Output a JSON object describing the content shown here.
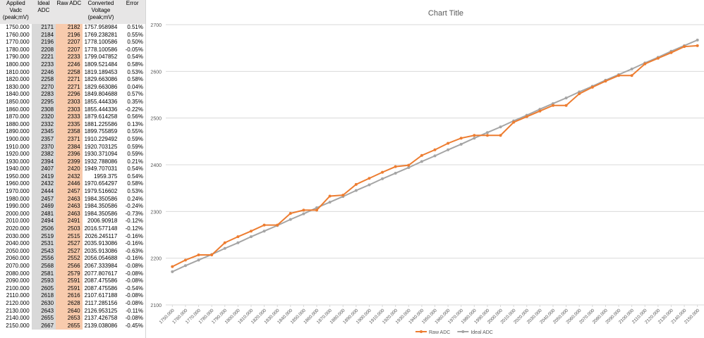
{
  "table": {
    "header": [
      "Applied Vadc (peak;mV)",
      "Ideal ADC",
      "Raw ADC",
      "Converted Voltage (peak;mV)",
      "Error"
    ],
    "rows": [
      [
        "1750.000",
        "2171",
        "2182",
        "1757.958984",
        "0.51%"
      ],
      [
        "1760.000",
        "2184",
        "2196",
        "1769.238281",
        "0.55%"
      ],
      [
        "1770.000",
        "2196",
        "2207",
        "1778.100586",
        "0.50%"
      ],
      [
        "1780.000",
        "2208",
        "2207",
        "1778.100586",
        "-0.05%"
      ],
      [
        "1790.000",
        "2221",
        "2233",
        "1799.047852",
        "0.54%"
      ],
      [
        "1800.000",
        "2233",
        "2246",
        "1809.521484",
        "0.58%"
      ],
      [
        "1810.000",
        "2246",
        "2258",
        "1819.189453",
        "0.53%"
      ],
      [
        "1820.000",
        "2258",
        "2271",
        "1829.663086",
        "0.58%"
      ],
      [
        "1830.000",
        "2270",
        "2271",
        "1829.663086",
        "0.04%"
      ],
      [
        "1840.000",
        "2283",
        "2296",
        "1849.804688",
        "0.57%"
      ],
      [
        "1850.000",
        "2295",
        "2303",
        "1855.444336",
        "0.35%"
      ],
      [
        "1860.000",
        "2308",
        "2303",
        "1855.444336",
        "-0.22%"
      ],
      [
        "1870.000",
        "2320",
        "2333",
        "1879.614258",
        "0.56%"
      ],
      [
        "1880.000",
        "2332",
        "2335",
        "1881.225586",
        "0.13%"
      ],
      [
        "1890.000",
        "2345",
        "2358",
        "1899.755859",
        "0.55%"
      ],
      [
        "1900.000",
        "2357",
        "2371",
        "1910.229492",
        "0.59%"
      ],
      [
        "1910.000",
        "2370",
        "2384",
        "1920.703125",
        "0.59%"
      ],
      [
        "1920.000",
        "2382",
        "2396",
        "1930.371094",
        "0.59%"
      ],
      [
        "1930.000",
        "2394",
        "2399",
        "1932.788086",
        "0.21%"
      ],
      [
        "1940.000",
        "2407",
        "2420",
        "1949.707031",
        "0.54%"
      ],
      [
        "1950.000",
        "2419",
        "2432",
        "1959.375",
        "0.54%"
      ],
      [
        "1960.000",
        "2432",
        "2446",
        "1970.654297",
        "0.58%"
      ],
      [
        "1970.000",
        "2444",
        "2457",
        "1979.516602",
        "0.53%"
      ],
      [
        "1980.000",
        "2457",
        "2463",
        "1984.350586",
        "0.24%"
      ],
      [
        "1990.000",
        "2469",
        "2463",
        "1984.350586",
        "-0.24%"
      ],
      [
        "2000.000",
        "2481",
        "2463",
        "1984.350586",
        "-0.73%"
      ],
      [
        "2010.000",
        "2494",
        "2491",
        "2006.90918",
        "-0.12%"
      ],
      [
        "2020.000",
        "2506",
        "2503",
        "2016.577148",
        "-0.12%"
      ],
      [
        "2030.000",
        "2519",
        "2515",
        "2026.245117",
        "-0.16%"
      ],
      [
        "2040.000",
        "2531",
        "2527",
        "2035.913086",
        "-0.16%"
      ],
      [
        "2050.000",
        "2543",
        "2527",
        "2035.913086",
        "-0.63%"
      ],
      [
        "2060.000",
        "2556",
        "2552",
        "2056.054688",
        "-0.16%"
      ],
      [
        "2070.000",
        "2568",
        "2566",
        "2067.333984",
        "-0.08%"
      ],
      [
        "2080.000",
        "2581",
        "2579",
        "2077.807617",
        "-0.08%"
      ],
      [
        "2090.000",
        "2593",
        "2591",
        "2087.475586",
        "-0.08%"
      ],
      [
        "2100.000",
        "2605",
        "2591",
        "2087.475586",
        "-0.54%"
      ],
      [
        "2110.000",
        "2618",
        "2616",
        "2107.617188",
        "-0.08%"
      ],
      [
        "2120.000",
        "2630",
        "2628",
        "2117.285156",
        "-0.08%"
      ],
      [
        "2130.000",
        "2643",
        "2640",
        "2126.953125",
        "-0.11%"
      ],
      [
        "2140.000",
        "2655",
        "2653",
        "2137.426758",
        "-0.08%"
      ],
      [
        "2150.000",
        "2667",
        "2655",
        "2139.038086",
        "-0.45%"
      ]
    ]
  },
  "chart_data": {
    "type": "line",
    "title": "Chart Title",
    "categories": [
      "1750.000",
      "1760.000",
      "1770.000",
      "1780.000",
      "1790.000",
      "1800.000",
      "1810.000",
      "1820.000",
      "1830.000",
      "1840.000",
      "1850.000",
      "1860.000",
      "1870.000",
      "1880.000",
      "1890.000",
      "1900.000",
      "1910.000",
      "1920.000",
      "1930.000",
      "1940.000",
      "1950.000",
      "1960.000",
      "1970.000",
      "1980.000",
      "1990.000",
      "2000.000",
      "2010.000",
      "2020.000",
      "2030.000",
      "2040.000",
      "2050.000",
      "2060.000",
      "2070.000",
      "2080.000",
      "2090.000",
      "2100.000",
      "2110.000",
      "2120.000",
      "2130.000",
      "2140.000",
      "2150.000"
    ],
    "series": [
      {
        "name": "Raw ADC",
        "color": "#ed7d31",
        "values": [
          2182,
          2196,
          2207,
          2207,
          2233,
          2246,
          2258,
          2271,
          2271,
          2296,
          2303,
          2303,
          2333,
          2335,
          2358,
          2371,
          2384,
          2396,
          2399,
          2420,
          2432,
          2446,
          2457,
          2463,
          2463,
          2463,
          2491,
          2503,
          2515,
          2527,
          2527,
          2552,
          2566,
          2579,
          2591,
          2591,
          2616,
          2628,
          2640,
          2653,
          2655
        ]
      },
      {
        "name": "Ideal ADC",
        "color": "#a5a5a5",
        "values": [
          2171,
          2184,
          2196,
          2208,
          2221,
          2233,
          2246,
          2258,
          2270,
          2283,
          2295,
          2308,
          2320,
          2332,
          2345,
          2357,
          2370,
          2382,
          2394,
          2407,
          2419,
          2432,
          2444,
          2457,
          2469,
          2481,
          2494,
          2506,
          2519,
          2531,
          2543,
          2556,
          2568,
          2581,
          2593,
          2605,
          2618,
          2630,
          2643,
          2655,
          2667
        ]
      }
    ],
    "ylim": [
      2100,
      2700
    ],
    "yticks": [
      2100,
      2200,
      2300,
      2400,
      2500,
      2600,
      2700
    ],
    "grid": true,
    "legend": "bottom"
  }
}
